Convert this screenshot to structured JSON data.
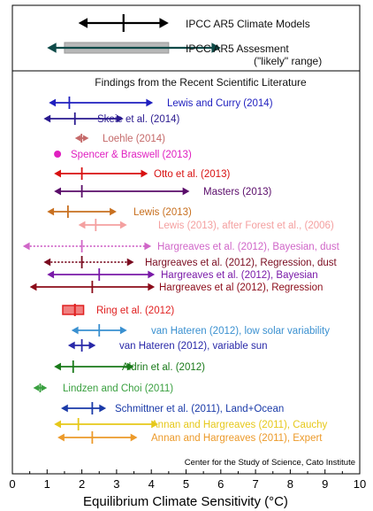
{
  "chart_data": {
    "type": "range",
    "xlabel": "Equilibrium Climate Sensitivity (°C)",
    "xlim": [
      0,
      10
    ],
    "xticks": [
      0,
      1,
      2,
      3,
      4,
      5,
      6,
      7,
      8,
      9,
      10
    ],
    "grid": false,
    "credit": "Center for the Study of Science, Cato Institute",
    "section_title": "Findings from the Recent Scientific Literature",
    "ipcc": [
      {
        "name": "IPCC AR5 Climate Models",
        "low": 1.9,
        "best": 3.2,
        "high": 4.5,
        "color": "#000000"
      },
      {
        "name": "IPCC AR5 Assesment",
        "sublabel": "(\"likely\" range)",
        "low": 1.0,
        "best": null,
        "high": 6.0,
        "likely_low": 1.5,
        "likely_high": 4.5,
        "color": "#0e4a48"
      }
    ],
    "studies": [
      {
        "name": "Lewis and Curry (2014)",
        "low": 1.05,
        "best": 1.64,
        "high": 4.05,
        "color": "#1f1fbf",
        "style": "solid"
      },
      {
        "name": "Skeie et al. (2014)",
        "low": 0.9,
        "best": 1.8,
        "high": 3.2,
        "color": "#2a1a8f",
        "style": "solid"
      },
      {
        "name": "Loehle (2014)",
        "low": 1.8,
        "best": 1.99,
        "high": 2.2,
        "color": "#c56a6a",
        "style": "solid"
      },
      {
        "name": "Spencer & Braswell (2013)",
        "best": 1.3,
        "color": "#e020c0",
        "style": "point"
      },
      {
        "name": "Otto et al. (2013)",
        "low": 1.2,
        "best": 2.0,
        "high": 3.9,
        "color": "#d81010",
        "style": "solid"
      },
      {
        "name": "Masters (2013)",
        "low": 1.2,
        "best": 2.0,
        "high": 5.1,
        "color": "#5a0c6a",
        "style": "solid"
      },
      {
        "name": "Lewis (2013)",
        "low": 1.0,
        "best": 1.6,
        "high": 3.0,
        "color": "#c87020",
        "style": "solid"
      },
      {
        "name": "Lewis (2013), after Forest et al., (2006)",
        "low": 1.9,
        "best": 2.4,
        "high": 3.3,
        "color": "#f4a0a0",
        "style": "solid"
      },
      {
        "name": "Hargreaves et al. (2012), Bayesian, dust",
        "low": 0.3,
        "best": 2.0,
        "high": 4.0,
        "color": "#d066c8",
        "style": "dotted"
      },
      {
        "name": "Hargreaves et al. (2012), Regression, dust",
        "low": 0.9,
        "best": 2.0,
        "high": 3.5,
        "color": "#7a0c20",
        "style": "dotted"
      },
      {
        "name": "Hargreaves et al. (2012), Bayesian",
        "low": 1.0,
        "best": 2.5,
        "high": 4.1,
        "color": "#7a1aa8",
        "style": "solid"
      },
      {
        "name": "Hargreaves et al (2012), Regression",
        "low": 0.5,
        "best": 2.3,
        "high": 4.1,
        "color": "#8c0c1a",
        "style": "solid"
      },
      {
        "name": "Ring et al. (2012)",
        "low": 1.45,
        "best": 1.8,
        "high": 2.05,
        "color": "#e02020",
        "style": "box"
      },
      {
        "name": "van Hateren (2012), low solar variability",
        "low": 1.7,
        "best": 2.5,
        "high": 3.3,
        "color": "#3a90d0",
        "style": "solid"
      },
      {
        "name": "van Hateren (2012), variable sun",
        "low": 1.6,
        "best": 2.0,
        "high": 2.4,
        "color": "#2828a8",
        "style": "solid"
      },
      {
        "name": "Aldrin et al. (2012)",
        "low": 1.2,
        "best": 1.75,
        "high": 3.5,
        "color": "#1a7a1a",
        "style": "solid"
      },
      {
        "name": "Lindzen and Choi (2011)",
        "low": 0.6,
        "best": 0.8,
        "high": 1.0,
        "color": "#3aa040",
        "style": "solid"
      },
      {
        "name": "Schmittner et al. (2011), Land+Ocean",
        "low": 1.4,
        "best": 2.3,
        "high": 2.7,
        "color": "#1a3aa8",
        "style": "solid"
      },
      {
        "name": "Annan and Hargreaves (2011), Cauchy",
        "low": 1.2,
        "best": 1.9,
        "high": 4.2,
        "color": "#e6c81a",
        "style": "solid"
      },
      {
        "name": "Annan and Hargreaves (2011), Expert",
        "low": 1.3,
        "best": 2.3,
        "high": 3.6,
        "color": "#ec9a2a",
        "style": "solid"
      }
    ]
  }
}
